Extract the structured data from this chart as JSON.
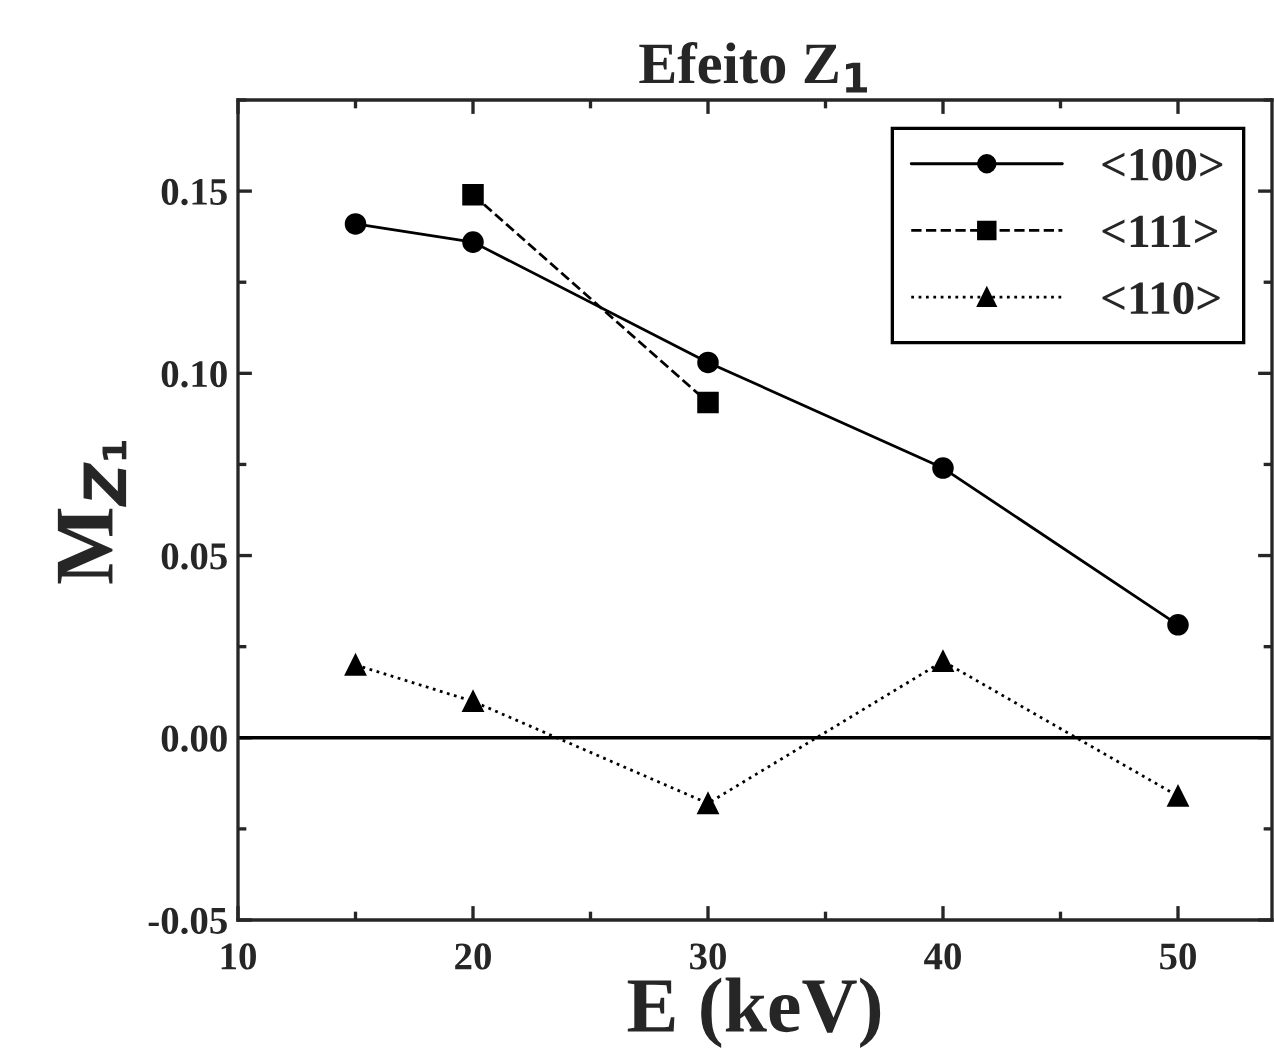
{
  "chart_data": {
    "type": "line",
    "title": "Efeito Z$_{1}$",
    "xlabel": "E (keV)",
    "ylabel": "M$_{Z₁}$",
    "xlim": [
      10,
      54
    ],
    "ylim": [
      -0.05,
      0.175
    ],
    "xticks": [
      10,
      20,
      30,
      40,
      50
    ],
    "yticks": [
      {
        "value": -0.05,
        "label": "-0.05"
      },
      {
        "value": 0,
        "label": "0.00"
      },
      {
        "value": 0.05,
        "label": "0.05"
      },
      {
        "value": 0.1,
        "label": "0.10"
      },
      {
        "value": 0.15,
        "label": "0.15"
      }
    ],
    "legend": "top right",
    "grid": false,
    "ref_lines": [
      {
        "axis": "y",
        "value": 0,
        "color": "#000000"
      }
    ],
    "series": [
      {
        "name": "<100>",
        "color": "#000000",
        "marker": "circle",
        "line_style": "solid",
        "x": [
          15,
          20,
          30,
          40,
          50
        ],
        "values": [
          0.141,
          0.136,
          0.103,
          0.074,
          0.031
        ]
      },
      {
        "name": "<111>",
        "color": "#000000",
        "marker": "square",
        "line_style": "dashed",
        "x": [
          20,
          30
        ],
        "values": [
          0.149,
          0.092
        ]
      },
      {
        "name": "<110>",
        "color": "#000000",
        "marker": "triangle",
        "line_style": "dotted",
        "x": [
          15,
          20,
          30,
          40,
          50
        ],
        "values": [
          0.02,
          0.01,
          -0.018,
          0.021,
          -0.016
        ]
      }
    ]
  }
}
